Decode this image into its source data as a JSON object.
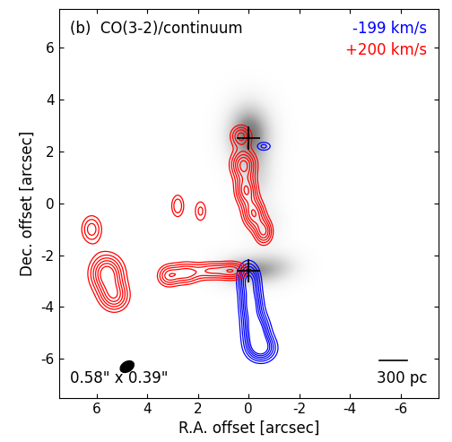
{
  "chart_data": {
    "type": "contour",
    "title": "(b)  CO(3-2)/continuum",
    "xlabel": "R.A. offset [arcsec]",
    "ylabel": "Dec. offset [arcsec]",
    "xlim": [
      7.5,
      -7.5
    ],
    "ylim": [
      -7.5,
      7.5
    ],
    "xticks": [
      6,
      4,
      2,
      0,
      -2,
      -4,
      -6
    ],
    "yticks": [
      -6,
      -4,
      -2,
      0,
      2,
      4,
      6
    ],
    "legend": "upper right",
    "contour_levels": [
      0.3,
      0.45,
      0.6,
      0.75,
      0.9,
      1.05
    ],
    "continuum": [
      {
        "x": 0.0,
        "y": 2.7,
        "sx": 0.6,
        "sy": 0.8,
        "amp": 1.0
      },
      {
        "x": -0.3,
        "y": 1.0,
        "sx": 0.5,
        "sy": 0.7,
        "amp": 0.35
      },
      {
        "x": -0.6,
        "y": -0.8,
        "sx": 0.5,
        "sy": 0.6,
        "amp": 0.25
      },
      {
        "x": 0.0,
        "y": -2.6,
        "sx": 0.8,
        "sy": 0.4,
        "amp": 0.8
      },
      {
        "x": -1.2,
        "y": -2.4,
        "sx": 0.6,
        "sy": 0.4,
        "amp": 0.3
      }
    ],
    "series": [
      {
        "name": "-199 km/s",
        "color": "#0000ff",
        "components": [
          {
            "x": 0.0,
            "y": -2.9,
            "sx": 0.3,
            "sy": 0.45,
            "amp": 1.0
          },
          {
            "x": -0.1,
            "y": -3.9,
            "sx": 0.3,
            "sy": 0.5,
            "amp": 1.1
          },
          {
            "x": -0.3,
            "y": -4.9,
            "sx": 0.35,
            "sy": 0.45,
            "amp": 1.2
          },
          {
            "x": -0.5,
            "y": -5.6,
            "sx": 0.4,
            "sy": 0.35,
            "amp": 1.1
          },
          {
            "x": -0.6,
            "y": 2.2,
            "sx": 0.25,
            "sy": 0.15,
            "amp": 0.5
          }
        ]
      },
      {
        "name": "+200 km/s",
        "color": "#ff0000",
        "components": [
          {
            "x": 0.3,
            "y": 2.6,
            "sx": 0.3,
            "sy": 0.3,
            "amp": 0.8
          },
          {
            "x": 0.2,
            "y": 1.5,
            "sx": 0.35,
            "sy": 0.4,
            "amp": 1.1
          },
          {
            "x": 0.1,
            "y": 0.5,
            "sx": 0.3,
            "sy": 0.4,
            "amp": 1.0
          },
          {
            "x": -0.2,
            "y": -0.4,
            "sx": 0.3,
            "sy": 0.4,
            "amp": 1.0
          },
          {
            "x": -0.6,
            "y": -1.1,
            "sx": 0.25,
            "sy": 0.35,
            "amp": 0.9
          },
          {
            "x": 0.6,
            "y": -2.6,
            "sx": 0.4,
            "sy": 0.25,
            "amp": 0.8
          },
          {
            "x": 1.5,
            "y": -2.6,
            "sx": 0.45,
            "sy": 0.25,
            "amp": 0.7
          },
          {
            "x": 2.5,
            "y": -2.7,
            "sx": 0.4,
            "sy": 0.3,
            "amp": 0.8
          },
          {
            "x": 3.2,
            "y": -2.8,
            "sx": 0.3,
            "sy": 0.3,
            "amp": 0.7
          },
          {
            "x": 2.8,
            "y": -0.1,
            "sx": 0.2,
            "sy": 0.35,
            "amp": 0.6
          },
          {
            "x": 1.9,
            "y": -0.3,
            "sx": 0.2,
            "sy": 0.35,
            "amp": 0.5
          },
          {
            "x": 6.2,
            "y": -1.0,
            "sx": 0.3,
            "sy": 0.4,
            "amp": 0.7
          },
          {
            "x": 5.6,
            "y": -2.7,
            "sx": 0.45,
            "sy": 0.5,
            "amp": 1.2
          },
          {
            "x": 5.3,
            "y": -3.6,
            "sx": 0.4,
            "sy": 0.4,
            "amp": 0.9
          }
        ]
      }
    ],
    "markers": {
      "marker": "+",
      "color": "#000000",
      "x": [
        0.0,
        0.0
      ],
      "y": [
        2.5,
        -2.6
      ]
    },
    "beam": {
      "major": 0.58,
      "minor": 0.39,
      "label": "0.58\" x 0.39\""
    },
    "scale_bar": {
      "length": 1.1,
      "label": "300 pc"
    }
  }
}
